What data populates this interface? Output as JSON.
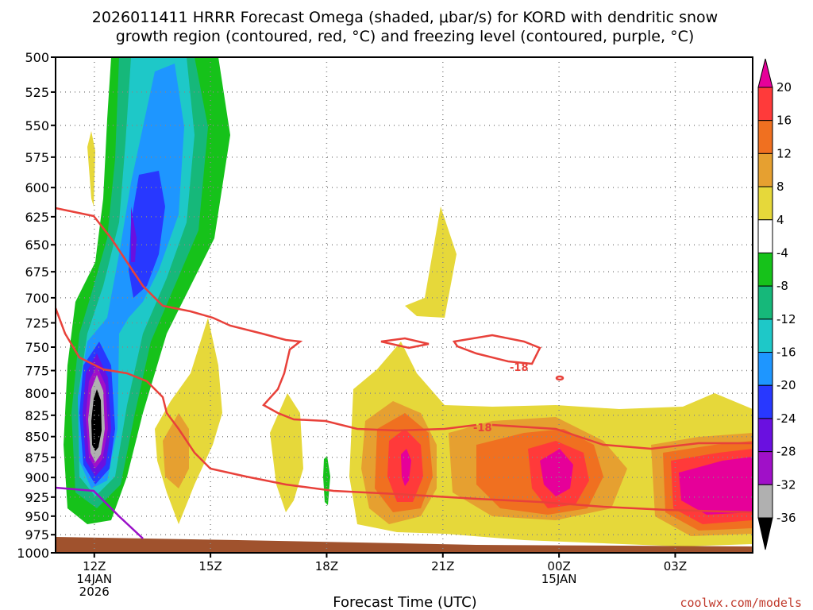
{
  "title_line1": "2026011411 HRRR Forecast Omega (shaded, μbar/s) for KORD with dendritic snow",
  "title_line2": "growth region (contoured, red, °C) and freezing level (contoured, purple, °C)",
  "credit": "coolwx.com/models",
  "chart_data": {
    "type": "heatmap",
    "title": "2026011411 HRRR Forecast Omega (shaded, μbar/s) for KORD with dendritic snow growth region (contoured, red, °C) and freezing level (contoured, purple, °C)",
    "xlabel": "Forecast Time (UTC)",
    "ylabel": "",
    "y_scale": "log-pressure (hPa), inverted",
    "ylim": [
      1000,
      500
    ],
    "y_ticks": [
      "500",
      "525",
      "550",
      "575",
      "600",
      "625",
      "650",
      "675",
      "700",
      "725",
      "750",
      "775",
      "800",
      "825",
      "850",
      "875",
      "900",
      "925",
      "950",
      "975",
      "1000"
    ],
    "x_ticks": [
      {
        "hour": 12,
        "lines": [
          "12Z",
          "14JAN",
          "2026"
        ]
      },
      {
        "hour": 15,
        "lines": [
          "15Z"
        ]
      },
      {
        "hour": 18,
        "lines": [
          "18Z"
        ]
      },
      {
        "hour": 21,
        "lines": [
          "21Z"
        ]
      },
      {
        "hour": 24,
        "lines": [
          "00Z",
          "15JAN"
        ]
      },
      {
        "hour": 27,
        "lines": [
          "03Z"
        ]
      }
    ],
    "xlim_hours": [
      11,
      29
    ],
    "grid": true,
    "colorbar": {
      "labels": [
        "20",
        "16",
        "12",
        "8",
        "4",
        "-4",
        "-8",
        "-12",
        "-16",
        "-20",
        "-24",
        "-28",
        "-32",
        "-36"
      ],
      "colors": [
        "#e60099",
        "#ff3a3a",
        "#f07020",
        "#e6a030",
        "#e6d83a",
        "#ffffff",
        "#16c21a",
        "#16b87a",
        "#1ec8c8",
        "#1e96ff",
        "#2838ff",
        "#6a10e0",
        "#a010c8",
        "#b0b0b0",
        "#000000"
      ]
    },
    "annotations": [
      "-18",
      "-18"
    ],
    "ground_color": "#a0522d",
    "dsg_color": "#e8413a",
    "freezing_color": "#9a10c8"
  }
}
